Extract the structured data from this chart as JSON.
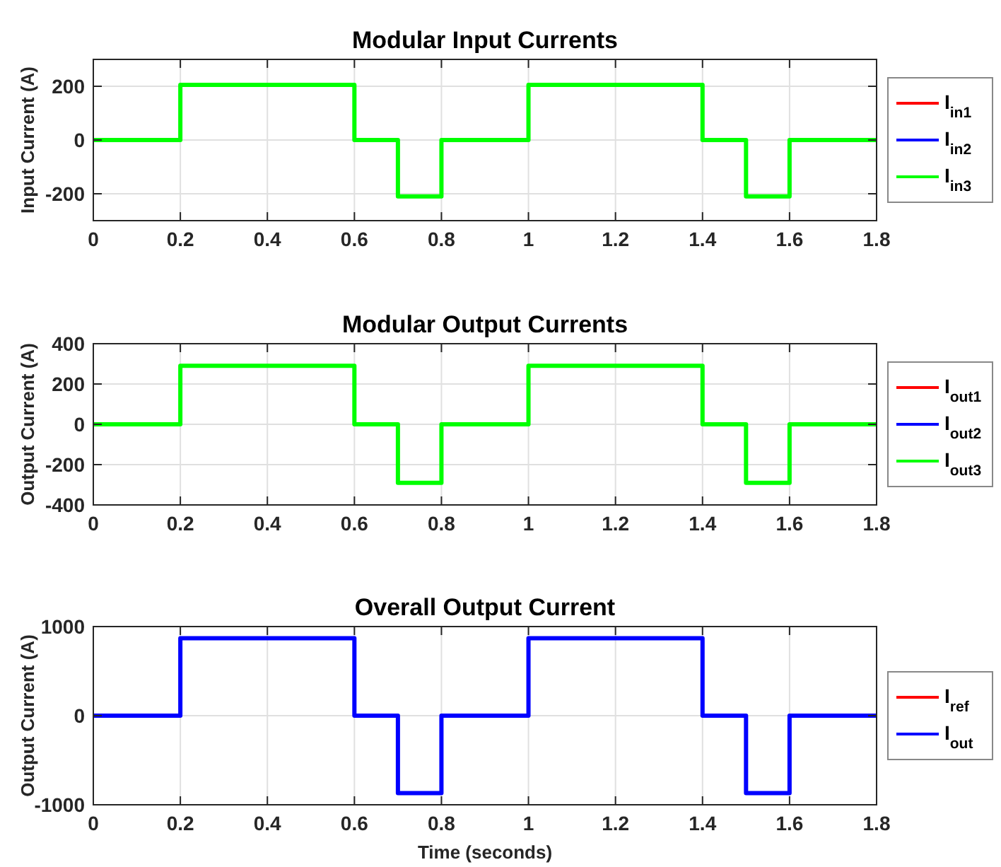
{
  "chart_data": [
    {
      "type": "line",
      "title": "Modular Input Currents",
      "ylabel": "Input Current (A)",
      "x": [
        0,
        0.2,
        0.2,
        0.6,
        0.6,
        0.7,
        0.7,
        0.8,
        0.8,
        1,
        1,
        1.4,
        1.4,
        1.5,
        1.5,
        1.6,
        1.6,
        1.8
      ],
      "xlim": [
        0,
        1.8
      ],
      "xticks": [
        0,
        0.2,
        0.4,
        0.6,
        0.8,
        1,
        1.2,
        1.4,
        1.6,
        1.8
      ],
      "ylim": [
        -300,
        300
      ],
      "yticks": [
        -200,
        0,
        200
      ],
      "grid": true,
      "legend": "right",
      "line_style": "solid",
      "marker": "none",
      "series": [
        {
          "name": "I$_{in1}$",
          "color": "#ff0000",
          "values": [
            null,
            null,
            null,
            null,
            null,
            null,
            null,
            null,
            null,
            null,
            null,
            null,
            null,
            null,
            null,
            null,
            null,
            null
          ]
        },
        {
          "name": "I$_{in2}$",
          "color": "#0000ff",
          "values": [
            null,
            null,
            null,
            null,
            null,
            null,
            null,
            null,
            null,
            null,
            null,
            null,
            null,
            null,
            null,
            null,
            null,
            null
          ]
        },
        {
          "name": "I$_{in3}$",
          "color": "#00ff00",
          "values": [
            0,
            0,
            205,
            205,
            0,
            0,
            -210,
            -210,
            0,
            0,
            205,
            205,
            0,
            0,
            -210,
            -210,
            0,
            0
          ]
        }
      ]
    },
    {
      "type": "line",
      "title": "Modular Output Currents",
      "ylabel": "Output Current (A)",
      "x": [
        0,
        0.2,
        0.2,
        0.6,
        0.6,
        0.7,
        0.7,
        0.8,
        0.8,
        1,
        1,
        1.4,
        1.4,
        1.5,
        1.5,
        1.6,
        1.6,
        1.8
      ],
      "xlim": [
        0,
        1.8
      ],
      "xticks": [
        0,
        0.2,
        0.4,
        0.6,
        0.8,
        1,
        1.2,
        1.4,
        1.6,
        1.8
      ],
      "ylim": [
        -400,
        400
      ],
      "yticks": [
        -400,
        -200,
        0,
        200,
        400
      ],
      "grid": true,
      "legend": "right",
      "line_style": "solid",
      "marker": "none",
      "series": [
        {
          "name": "I$_{out1}$",
          "color": "#ff0000",
          "values": [
            null,
            null,
            null,
            null,
            null,
            null,
            null,
            null,
            null,
            null,
            null,
            null,
            null,
            null,
            null,
            null,
            null,
            null
          ]
        },
        {
          "name": "I$_{out2}$",
          "color": "#0000ff",
          "values": [
            null,
            null,
            null,
            null,
            null,
            null,
            null,
            null,
            null,
            null,
            null,
            null,
            null,
            null,
            null,
            null,
            null,
            null
          ]
        },
        {
          "name": "I$_{out3}$",
          "color": "#00ff00",
          "values": [
            0,
            0,
            290,
            290,
            0,
            0,
            -290,
            -290,
            0,
            0,
            290,
            290,
            0,
            0,
            -290,
            -290,
            0,
            0
          ]
        }
      ]
    },
    {
      "type": "line",
      "title": "Overall Output Current",
      "ylabel": "Output Current (A)",
      "xlabel": "Time (seconds)",
      "x": [
        0,
        0.2,
        0.2,
        0.6,
        0.6,
        0.7,
        0.7,
        0.8,
        0.8,
        1,
        1,
        1.4,
        1.4,
        1.5,
        1.5,
        1.6,
        1.6,
        1.8
      ],
      "xlim": [
        0,
        1.8
      ],
      "xticks": [
        0,
        0.2,
        0.4,
        0.6,
        0.8,
        1,
        1.2,
        1.4,
        1.6,
        1.8
      ],
      "ylim": [
        -1000,
        1000
      ],
      "yticks": [
        -1000,
        0,
        1000
      ],
      "grid": true,
      "legend": "right",
      "line_style": "solid",
      "marker": "none",
      "series": [
        {
          "name": "I$_{ref}$",
          "color": "#ff0000",
          "values": [
            null,
            null,
            null,
            null,
            null,
            null,
            null,
            null,
            null,
            null,
            null,
            null,
            null,
            null,
            null,
            null,
            null,
            null
          ]
        },
        {
          "name": "I$_{out}$",
          "color": "#0000ff",
          "values": [
            0,
            0,
            870,
            870,
            0,
            0,
            -870,
            -870,
            0,
            0,
            870,
            870,
            0,
            0,
            -870,
            -870,
            0,
            0
          ]
        }
      ]
    }
  ]
}
